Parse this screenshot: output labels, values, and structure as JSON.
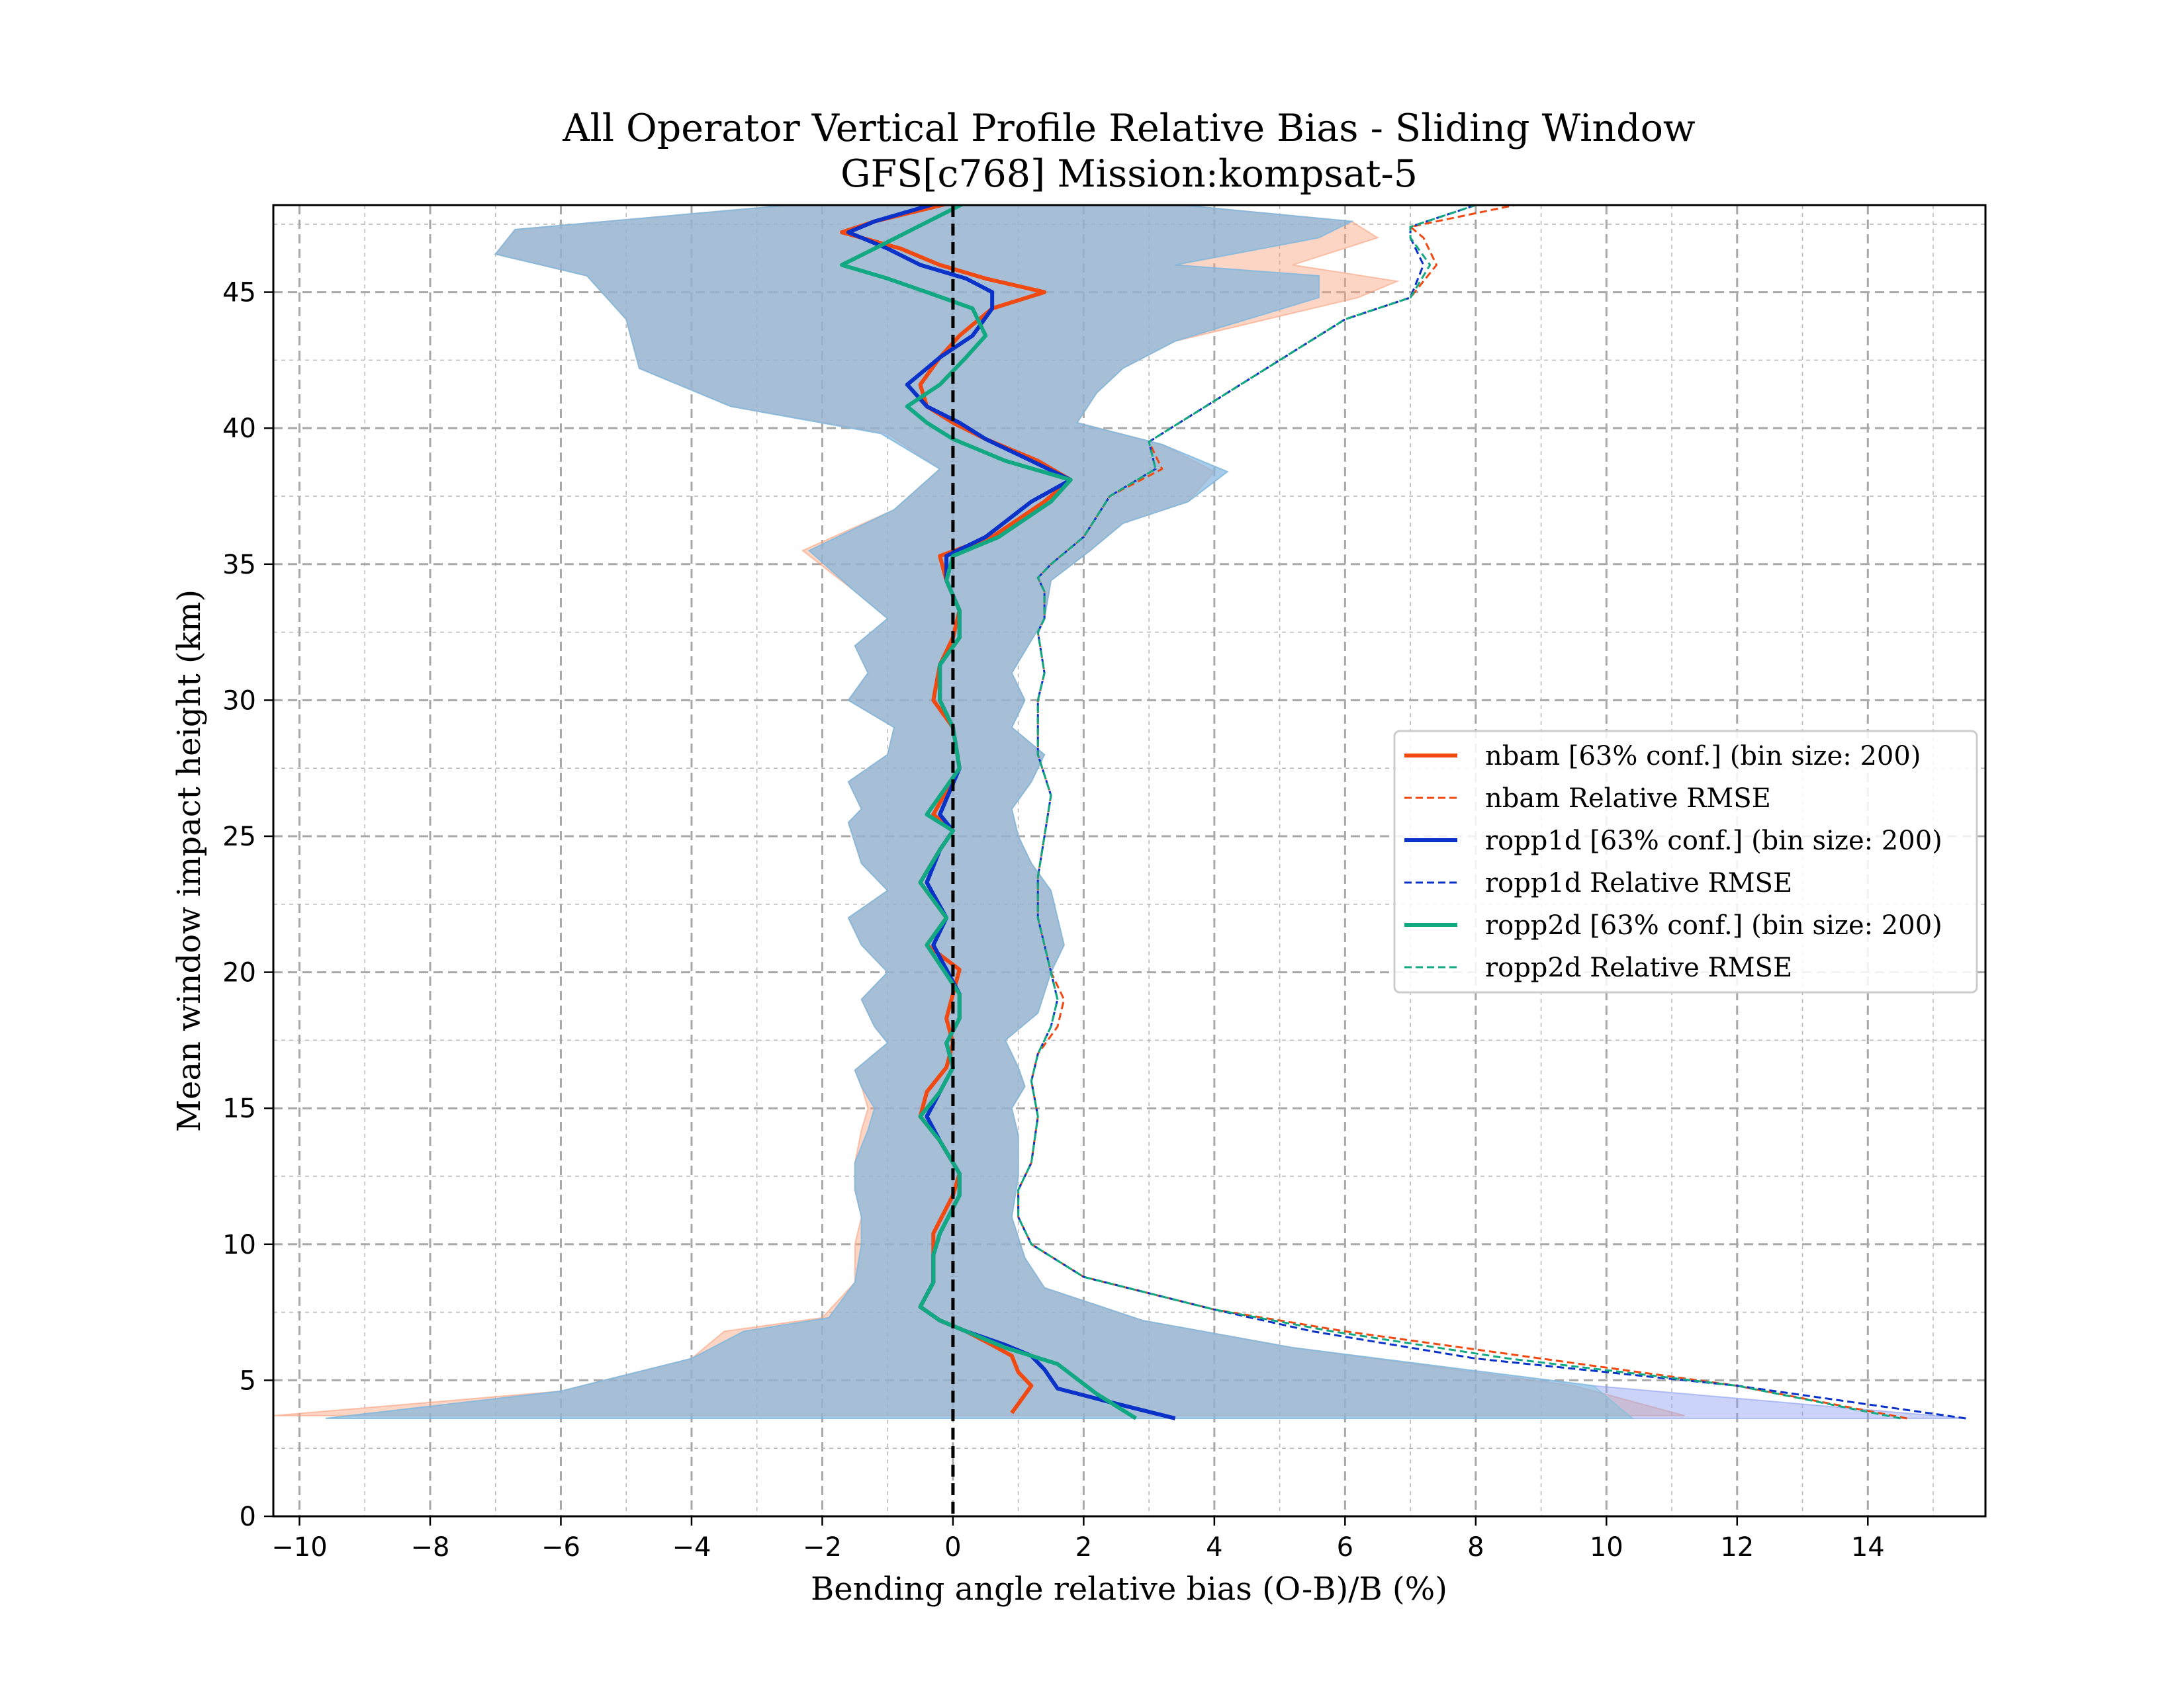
{
  "chart_data": {
    "type": "line",
    "title": "All Operator Vertical Profile Relative Bias - Sliding Window",
    "subtitle": "GFS[c768] Mission:kompsat-5",
    "xlabel": "Bending angle relative bias (O-B)/B (%)",
    "ylabel": "Mean window impact height (km)",
    "xlim": [
      -10.4,
      15.8
    ],
    "ylim": [
      0,
      48.2
    ],
    "xticks": [
      -10,
      -8,
      -6,
      -4,
      -2,
      0,
      2,
      4,
      6,
      8,
      10,
      12,
      14
    ],
    "xtick_labels": [
      "−10",
      "−8",
      "−6",
      "−4",
      "−2",
      "0",
      "2",
      "4",
      "6",
      "8",
      "10",
      "12",
      "14"
    ],
    "yticks": [
      0,
      5,
      10,
      15,
      20,
      25,
      30,
      35,
      40,
      45
    ],
    "ytick_labels": [
      "0",
      "5",
      "10",
      "15",
      "20",
      "25",
      "30",
      "35",
      "40",
      "45"
    ],
    "grid": true,
    "zero_line_x": 0,
    "legend_position": "center-right",
    "series": [
      {
        "name": "nbam [63% conf.] (bin size: 200)",
        "style": "solid",
        "color": "#f04a12",
        "band_color": "#f9a27e",
        "x": [
          0.9,
          1.2,
          1.0,
          0.9,
          0.6,
          0.2,
          -0.2,
          -0.5,
          -0.3,
          -0.3,
          -0.3,
          0.0,
          0.1,
          -0.2,
          -0.5,
          -0.4,
          -0.1,
          0.0,
          -0.1,
          0.0,
          0.1,
          -0.4,
          -0.1,
          -0.5,
          -0.2,
          0.0,
          -0.3,
          0.1,
          0.0,
          -0.3,
          -0.2,
          0.0,
          0.1,
          -0.1,
          -0.2,
          0.6,
          1.4,
          1.8,
          1.3,
          0.5,
          0.0,
          -0.4,
          -0.5,
          -0.2,
          0.1,
          0.6,
          1.4,
          0.5,
          -0.2,
          -0.8,
          -1.7,
          -1.2,
          0.0
        ],
        "y": [
          3.8,
          4.8,
          5.3,
          5.9,
          6.3,
          6.8,
          7.2,
          7.7,
          8.6,
          9.6,
          10.4,
          11.8,
          12.6,
          13.8,
          14.7,
          15.6,
          16.5,
          17.4,
          18.3,
          19.2,
          20.1,
          21.0,
          22.0,
          23.3,
          24.5,
          25.2,
          25.8,
          27.5,
          29.0,
          30.0,
          31.3,
          32.3,
          33.3,
          34.4,
          35.3,
          36.0,
          37.3,
          38.1,
          38.8,
          39.6,
          40.2,
          40.8,
          41.6,
          42.6,
          43.4,
          44.4,
          45.0,
          45.5,
          46.0,
          46.6,
          47.2,
          47.6,
          48.3
        ],
        "band_x_low": [
          -10.4,
          -6.0,
          -4.0,
          -3.5,
          -2.0,
          -1.5,
          -1.5,
          -1.4,
          -1.5,
          -1.5,
          -1.4,
          -1.3,
          -1.4,
          -1.5,
          -1.0,
          -1.2,
          -1.4,
          -1.0,
          -1.4,
          -1.6,
          -1.0,
          -1.4,
          -1.6,
          -1.4,
          -1.6,
          -1.0,
          -0.9,
          -1.6,
          -1.3,
          -1.5,
          -1.0,
          -1.5,
          -2.3,
          -0.9,
          -0.2,
          -1.0,
          -3.4,
          -4.8,
          -5.0,
          -5.6,
          -7.0,
          -6.7,
          -2.5,
          -0.5
        ],
        "band_y_low": [
          3.7,
          4.6,
          5.8,
          6.8,
          7.3,
          8.6,
          10.0,
          11.0,
          12.0,
          13.0,
          14.2,
          15.0,
          15.8,
          16.4,
          17.4,
          18.0,
          19.0,
          20.0,
          21.0,
          22.0,
          23.0,
          24.0,
          25.5,
          26.0,
          27.0,
          28.0,
          29.0,
          30.0,
          31.0,
          32.0,
          33.0,
          34.0,
          35.5,
          37.0,
          38.5,
          39.8,
          40.8,
          42.2,
          44.0,
          45.6,
          46.4,
          47.3,
          48.2,
          48.2
        ],
        "band_x_high": [
          0.7,
          11.2,
          9.5,
          5.2,
          2.9,
          1.4,
          1.1,
          0.9,
          1.0,
          1.0,
          0.9,
          1.1,
          1.0,
          0.8,
          1.3,
          1.5,
          1.7,
          1.6,
          1.5,
          1.2,
          1.0,
          0.9,
          1.2,
          1.4,
          0.9,
          1.1,
          0.9,
          1.4,
          1.5,
          2.1,
          2.6,
          3.6,
          4.0,
          3.2,
          1.9,
          2.2,
          2.6,
          3.4,
          6.2,
          6.8,
          5.2,
          6.5,
          6.1,
          3.5
        ],
        "band_y_high": [
          3.7,
          3.7,
          4.8,
          6.2,
          7.2,
          8.4,
          9.5,
          11.0,
          12.5,
          14.0,
          15.0,
          15.8,
          16.5,
          17.5,
          18.5,
          20.0,
          21.0,
          22.0,
          23.0,
          24.0,
          25.0,
          26.0,
          27.0,
          28.0,
          29.0,
          30.0,
          31.0,
          33.0,
          34.4,
          35.5,
          36.5,
          37.3,
          38.4,
          39.4,
          40.2,
          41.3,
          42.2,
          43.2,
          44.8,
          45.4,
          46.0,
          47.0,
          47.6,
          48.2
        ]
      },
      {
        "name": "nbam Relative RMSE",
        "style": "dashed",
        "color": "#f04a12",
        "x": [
          14.6,
          12.0,
          9.0,
          6.0,
          4.0,
          2.0,
          1.2,
          1.0,
          1.0,
          1.2,
          1.3,
          1.2,
          1.3,
          1.6,
          1.7,
          1.5,
          1.3,
          1.3,
          1.4,
          1.5,
          1.3,
          1.3,
          1.4,
          1.3,
          1.4,
          1.4,
          1.3,
          1.5,
          2.0,
          2.4,
          3.2,
          3.0,
          4.0,
          5.0,
          6.0,
          7.0,
          7.4,
          7.2,
          7.0,
          8.6
        ],
        "y": [
          3.6,
          4.8,
          5.8,
          6.8,
          7.6,
          8.8,
          10.0,
          11.0,
          12.0,
          13.0,
          14.7,
          16.0,
          17.0,
          18.0,
          19.0,
          20.0,
          22.0,
          23.5,
          25.0,
          26.5,
          28.0,
          30.0,
          31.0,
          32.5,
          33.0,
          34.0,
          34.5,
          35.0,
          36.0,
          37.5,
          38.5,
          39.5,
          41.0,
          42.5,
          44.0,
          44.8,
          46.0,
          47.0,
          47.4,
          48.2
        ]
      },
      {
        "name": "ropp1d [63% conf.] (bin size: 200)",
        "style": "solid",
        "color": "#0a32c8",
        "band_color": "#8c9ff0",
        "x": [
          3.4,
          2.4,
          1.6,
          1.4,
          1.2,
          0.8,
          0.2,
          -0.2,
          -0.5,
          -0.3,
          -0.3,
          -0.2,
          0.1,
          0.1,
          -0.2,
          -0.4,
          -0.2,
          0.0,
          -0.1,
          0.1,
          0.1,
          -0.3,
          -0.1,
          -0.4,
          -0.2,
          0.0,
          -0.2,
          0.1,
          0.0,
          -0.2,
          -0.2,
          0.1,
          0.1,
          -0.1,
          -0.1,
          0.5,
          1.2,
          1.8,
          1.2,
          0.5,
          0.1,
          -0.4,
          -0.7,
          -0.2,
          0.3,
          0.6,
          0.6,
          0.2,
          -0.5,
          -1.0,
          -1.6,
          -1.2,
          -0.2
        ],
        "y": [
          3.6,
          4.2,
          4.7,
          5.4,
          5.9,
          6.3,
          6.8,
          7.2,
          7.7,
          8.6,
          9.6,
          10.4,
          11.8,
          12.6,
          13.8,
          14.7,
          15.6,
          16.5,
          17.4,
          18.3,
          19.2,
          21.0,
          22.0,
          23.3,
          24.5,
          25.2,
          25.8,
          27.5,
          29.0,
          30.0,
          31.3,
          32.3,
          33.3,
          34.4,
          35.3,
          36.0,
          37.3,
          38.1,
          38.8,
          39.6,
          40.2,
          40.8,
          41.6,
          42.6,
          43.4,
          44.4,
          45.0,
          45.5,
          46.0,
          46.6,
          47.2,
          47.6,
          48.3
        ],
        "band_x_low": [
          -9.6,
          -6.0,
          -4.0,
          -3.2,
          -1.9,
          -1.5,
          -1.4,
          -1.4,
          -1.5,
          -1.5,
          -1.3,
          -1.2,
          -1.4,
          -1.5,
          -1.0,
          -1.2,
          -1.4,
          -1.0,
          -1.4,
          -1.6,
          -1.0,
          -1.4,
          -1.6,
          -1.4,
          -1.6,
          -1.0,
          -0.9,
          -1.6,
          -1.3,
          -1.5,
          -1.0,
          -1.5,
          -2.2,
          -0.9,
          -0.2,
          -1.1,
          -3.4,
          -4.8,
          -5.0,
          -5.6,
          -7.0,
          -6.7,
          -2.5,
          -0.5
        ],
        "band_y_low": [
          3.6,
          4.6,
          5.8,
          6.8,
          7.3,
          8.6,
          10.0,
          11.0,
          12.0,
          13.0,
          14.2,
          15.0,
          15.8,
          16.4,
          17.4,
          18.0,
          19.0,
          20.0,
          21.0,
          22.0,
          23.0,
          24.0,
          25.5,
          26.0,
          27.0,
          28.0,
          29.0,
          30.0,
          31.0,
          32.0,
          33.0,
          34.0,
          35.5,
          37.0,
          38.5,
          39.8,
          40.8,
          42.2,
          44.0,
          45.6,
          46.4,
          47.3,
          48.2,
          48.2
        ],
        "band_x_high": [
          3.4,
          15.5,
          9.8,
          5.2,
          2.9,
          1.4,
          1.1,
          0.9,
          1.0,
          1.0,
          0.9,
          1.1,
          1.0,
          0.8,
          1.3,
          1.5,
          1.7,
          1.6,
          1.5,
          1.2,
          1.0,
          0.9,
          1.2,
          1.4,
          0.9,
          1.1,
          0.9,
          1.4,
          1.5,
          2.1,
          2.6,
          3.6,
          4.2,
          3.2,
          1.9,
          2.2,
          2.6,
          3.4,
          5.6,
          5.6,
          3.4,
          5.6,
          6.1,
          3.5
        ],
        "band_y_high": [
          3.6,
          3.6,
          4.8,
          6.2,
          7.2,
          8.4,
          9.5,
          11.0,
          12.5,
          14.0,
          15.0,
          15.8,
          16.5,
          17.5,
          18.5,
          20.0,
          21.0,
          22.0,
          23.0,
          24.0,
          25.0,
          26.0,
          27.0,
          28.0,
          29.0,
          30.0,
          31.0,
          33.0,
          34.4,
          35.5,
          36.5,
          37.3,
          38.4,
          39.4,
          40.2,
          41.3,
          42.2,
          43.2,
          44.8,
          45.6,
          46.0,
          47.0,
          47.6,
          48.2
        ]
      },
      {
        "name": "ropp1d Relative RMSE",
        "style": "dashed",
        "color": "#0a32c8",
        "x": [
          15.5,
          12.0,
          8.0,
          5.5,
          4.0,
          2.0,
          1.2,
          1.0,
          1.0,
          1.2,
          1.3,
          1.2,
          1.3,
          1.5,
          1.6,
          1.5,
          1.3,
          1.3,
          1.4,
          1.5,
          1.3,
          1.3,
          1.4,
          1.3,
          1.4,
          1.4,
          1.3,
          1.5,
          2.0,
          2.4,
          3.1,
          3.0,
          4.0,
          5.0,
          6.0,
          7.0,
          7.2,
          7.0,
          7.0,
          8.0
        ],
        "y": [
          3.6,
          4.8,
          5.8,
          6.8,
          7.6,
          8.8,
          10.0,
          11.0,
          12.0,
          13.0,
          14.7,
          16.0,
          17.0,
          18.0,
          19.0,
          20.0,
          22.0,
          23.5,
          25.0,
          26.5,
          28.0,
          30.0,
          31.0,
          32.5,
          33.0,
          34.0,
          34.5,
          35.0,
          36.0,
          37.5,
          38.5,
          39.5,
          41.0,
          42.5,
          44.0,
          44.8,
          46.0,
          47.0,
          47.4,
          48.2
        ]
      },
      {
        "name": "ropp2d [63% conf.] (bin size: 200)",
        "style": "solid",
        "color": "#12a882",
        "band_color": "#7cc0d8",
        "x": [
          2.8,
          2.2,
          1.6,
          0.8,
          0.2,
          -0.2,
          -0.5,
          -0.3,
          -0.3,
          -0.2,
          0.1,
          0.1,
          -0.2,
          -0.5,
          -0.2,
          0.0,
          -0.1,
          0.1,
          0.1,
          -0.4,
          -0.1,
          -0.5,
          -0.2,
          0.0,
          -0.4,
          0.1,
          0.0,
          -0.2,
          -0.2,
          0.1,
          0.1,
          -0.1,
          0.0,
          0.7,
          1.5,
          1.8,
          0.8,
          0.0,
          -0.4,
          -0.7,
          -0.2,
          0.2,
          0.5,
          0.3,
          -0.4,
          -1.0,
          -1.7,
          -1.2,
          0.2
        ],
        "y": [
          3.6,
          4.5,
          5.6,
          6.2,
          6.8,
          7.2,
          7.7,
          8.6,
          9.6,
          10.4,
          11.8,
          12.6,
          13.8,
          14.7,
          15.6,
          16.5,
          17.4,
          18.3,
          19.2,
          21.0,
          22.0,
          23.3,
          24.5,
          25.2,
          25.8,
          27.5,
          29.0,
          30.0,
          31.3,
          32.3,
          33.3,
          34.4,
          35.3,
          36.0,
          37.3,
          38.1,
          38.8,
          39.6,
          40.2,
          40.8,
          41.6,
          42.6,
          43.4,
          44.4,
          45.0,
          45.5,
          46.0,
          46.6,
          48.3
        ],
        "band_x_low": [
          -9.6,
          -6.0,
          -4.0,
          -3.2,
          -1.9,
          -1.5,
          -1.4,
          -1.4,
          -1.5,
          -1.5,
          -1.3,
          -1.2,
          -1.4,
          -1.5,
          -1.0,
          -1.2,
          -1.4,
          -1.0,
          -1.4,
          -1.6,
          -1.0,
          -1.4,
          -1.6,
          -1.4,
          -1.6,
          -1.0,
          -0.9,
          -1.6,
          -1.3,
          -1.5,
          -1.0,
          -1.5,
          -2.2,
          -0.9,
          -0.2,
          -1.1,
          -3.4,
          -4.8,
          -5.0,
          -5.6,
          -7.0,
          -6.7,
          -2.5,
          -0.5
        ],
        "band_y_low": [
          3.6,
          4.6,
          5.8,
          6.8,
          7.3,
          8.6,
          10.0,
          11.0,
          12.0,
          13.0,
          14.2,
          15.0,
          15.8,
          16.4,
          17.4,
          18.0,
          19.0,
          20.0,
          21.0,
          22.0,
          23.0,
          24.0,
          25.5,
          26.0,
          27.0,
          28.0,
          29.0,
          30.0,
          31.0,
          32.0,
          33.0,
          34.0,
          35.5,
          37.0,
          38.5,
          39.8,
          40.8,
          42.2,
          44.0,
          45.6,
          46.4,
          47.3,
          48.2,
          48.2
        ],
        "band_x_high": [
          2.8,
          10.4,
          9.8,
          5.2,
          2.9,
          1.4,
          1.1,
          0.9,
          1.0,
          1.0,
          0.9,
          1.1,
          1.0,
          0.8,
          1.3,
          1.5,
          1.7,
          1.6,
          1.5,
          1.2,
          1.0,
          0.9,
          1.2,
          1.4,
          0.9,
          1.1,
          0.9,
          1.4,
          1.5,
          2.1,
          2.6,
          3.6,
          4.2,
          3.2,
          1.9,
          2.2,
          2.6,
          3.4,
          5.6,
          5.6,
          3.4,
          5.6,
          6.1,
          3.5
        ],
        "band_y_high": [
          3.6,
          3.6,
          4.8,
          6.2,
          7.2,
          8.4,
          9.5,
          11.0,
          12.5,
          14.0,
          15.0,
          15.8,
          16.5,
          17.5,
          18.5,
          20.0,
          21.0,
          22.0,
          23.0,
          24.0,
          25.0,
          26.0,
          27.0,
          28.0,
          29.0,
          30.0,
          31.0,
          33.0,
          34.4,
          35.5,
          36.5,
          37.3,
          38.4,
          39.4,
          40.2,
          41.3,
          42.2,
          43.2,
          44.8,
          45.6,
          46.0,
          47.0,
          47.6,
          48.2
        ]
      },
      {
        "name": "ropp2d Relative RMSE",
        "style": "dashed",
        "color": "#12a882",
        "x": [
          14.5,
          12.0,
          8.5,
          5.8,
          4.0,
          2.0,
          1.2,
          1.0,
          1.0,
          1.2,
          1.3,
          1.2,
          1.3,
          1.5,
          1.6,
          1.5,
          1.3,
          1.3,
          1.4,
          1.5,
          1.3,
          1.3,
          1.4,
          1.3,
          1.4,
          1.4,
          1.3,
          1.5,
          2.0,
          2.4,
          3.1,
          3.0,
          4.0,
          5.0,
          6.0,
          7.0,
          7.3,
          7.0,
          7.0,
          8.0
        ],
        "y": [
          3.6,
          4.8,
          5.8,
          6.8,
          7.6,
          8.8,
          10.0,
          11.0,
          12.0,
          13.0,
          14.7,
          16.0,
          17.0,
          18.0,
          19.0,
          20.0,
          22.0,
          23.5,
          25.0,
          26.5,
          28.0,
          30.0,
          31.0,
          32.5,
          33.0,
          34.0,
          34.5,
          35.0,
          36.0,
          37.5,
          38.5,
          39.5,
          41.0,
          42.5,
          44.0,
          44.8,
          46.0,
          47.0,
          47.4,
          48.2
        ]
      }
    ]
  }
}
